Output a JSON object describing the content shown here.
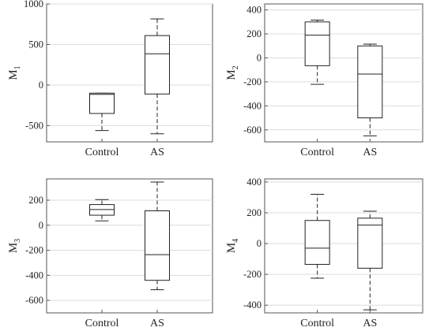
{
  "chart_data": [
    {
      "type": "box",
      "ylabel_main": "M",
      "ylabel_sub": "1",
      "categories": [
        "Control",
        "AS"
      ],
      "ylim": [
        -700,
        1000
      ],
      "yticks": [
        -500,
        0,
        500,
        1000
      ],
      "ytick_labels": [
        "-500",
        "0",
        "500",
        "1000"
      ],
      "grid": true,
      "boxes": [
        {
          "name": "Control",
          "min": -560,
          "q1": -350,
          "median": -115,
          "q3": -100,
          "max": -100
        },
        {
          "name": "AS",
          "min": -600,
          "q1": -110,
          "median": 385,
          "q3": 610,
          "max": 815
        }
      ]
    },
    {
      "type": "box",
      "ylabel_main": "M",
      "ylabel_sub": "2",
      "categories": [
        "Control",
        "AS"
      ],
      "ylim": [
        -700,
        450
      ],
      "yticks": [
        -600,
        -400,
        -200,
        0,
        200,
        400
      ],
      "ytick_labels": [
        "-600",
        "-400",
        "-200",
        "0",
        "200",
        "400"
      ],
      "grid": true,
      "boxes": [
        {
          "name": "Control",
          "min": -220,
          "q1": -65,
          "median": 190,
          "q3": 300,
          "max": 315
        },
        {
          "name": "AS",
          "min": -650,
          "q1": -500,
          "median": -135,
          "q3": 100,
          "max": 115
        }
      ]
    },
    {
      "type": "box",
      "ylabel_main": "M",
      "ylabel_sub": "3",
      "categories": [
        "Control",
        "AS"
      ],
      "ylim": [
        -700,
        370
      ],
      "yticks": [
        -600,
        -400,
        -200,
        0,
        200
      ],
      "ytick_labels": [
        "-600",
        "-400",
        "-200",
        "0",
        "200"
      ],
      "grid": true,
      "boxes": [
        {
          "name": "Control",
          "min": 35,
          "q1": 80,
          "median": 125,
          "q3": 165,
          "max": 205
        },
        {
          "name": "AS",
          "min": -515,
          "q1": -440,
          "median": -235,
          "q3": 115,
          "max": 345
        }
      ]
    },
    {
      "type": "box",
      "ylabel_main": "M",
      "ylabel_sub": "4",
      "categories": [
        "Control",
        "AS"
      ],
      "ylim": [
        -450,
        420
      ],
      "yticks": [
        -400,
        -200,
        0,
        200,
        400
      ],
      "ytick_labels": [
        "-400",
        "-200",
        "0",
        "200",
        "400"
      ],
      "grid": true,
      "boxes": [
        {
          "name": "Control",
          "min": -225,
          "q1": -135,
          "median": -30,
          "q3": 150,
          "max": 320
        },
        {
          "name": "AS",
          "min": -430,
          "q1": -160,
          "median": 120,
          "q3": 165,
          "max": 210
        }
      ]
    }
  ]
}
